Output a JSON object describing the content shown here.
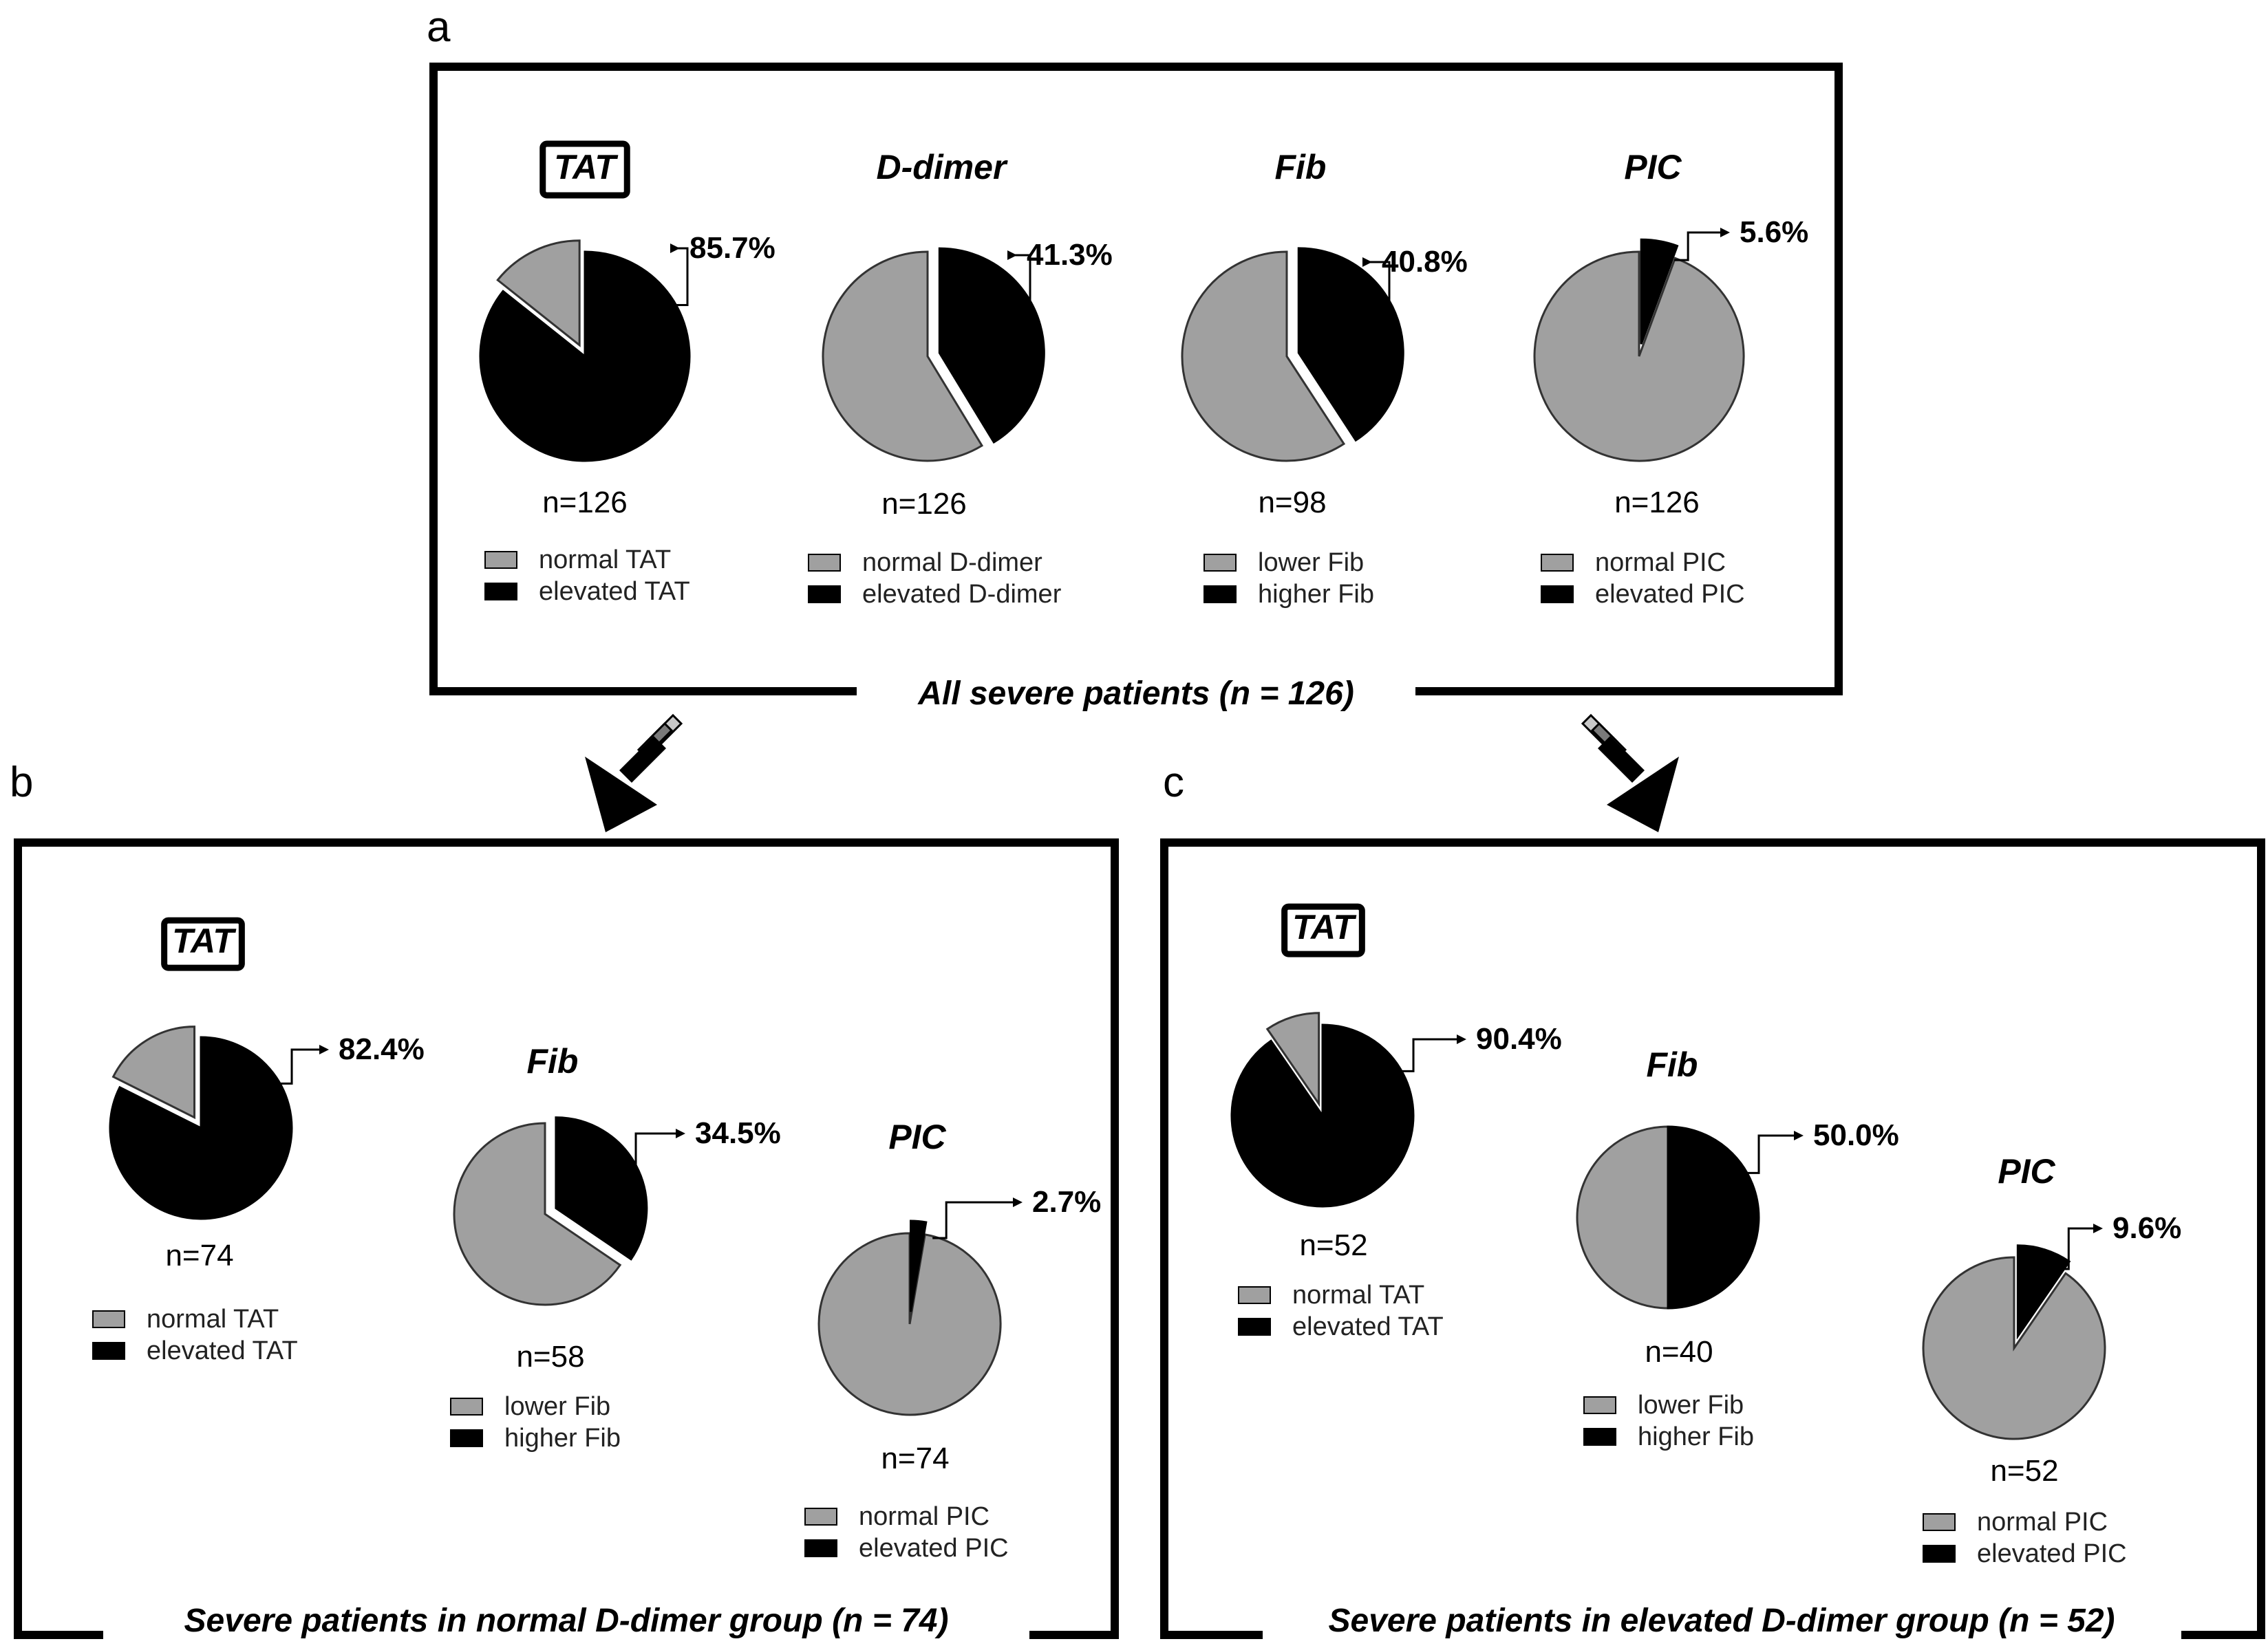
{
  "colors": {
    "normal": "#a0a0a0",
    "elevated": "#000000"
  },
  "chart_data": [
    {
      "panel": "a",
      "type": "pie",
      "caption": "All severe patients (n = 126)",
      "charts": [
        {
          "title": "TAT",
          "boxed": true,
          "n_label": "n=126",
          "highlight_pct": 85.7,
          "pct_label": "85.7%",
          "legend": [
            "normal TAT",
            "elevated TAT"
          ],
          "slices": [
            {
              "label": "normal TAT",
              "value": 14.3
            },
            {
              "label": "elevated TAT",
              "value": 85.7
            }
          ]
        },
        {
          "title": "D-dimer",
          "boxed": false,
          "n_label": "n=126",
          "highlight_pct": 41.3,
          "pct_label": "41.3%",
          "legend": [
            "normal D-dimer",
            "elevated D-dimer"
          ],
          "slices": [
            {
              "label": "normal D-dimer",
              "value": 58.7
            },
            {
              "label": "elevated D-dimer",
              "value": 41.3
            }
          ]
        },
        {
          "title": "Fib",
          "boxed": false,
          "n_label": "n=98",
          "highlight_pct": 40.8,
          "pct_label": "40.8%",
          "legend": [
            "lower Fib",
            "higher Fib"
          ],
          "slices": [
            {
              "label": "lower Fib",
              "value": 59.2
            },
            {
              "label": "higher Fib",
              "value": 40.8
            }
          ]
        },
        {
          "title": "PIC",
          "boxed": false,
          "n_label": "n=126",
          "highlight_pct": 5.6,
          "pct_label": "5.6%",
          "legend": [
            "normal PIC",
            "elevated PIC"
          ],
          "slices": [
            {
              "label": "normal PIC",
              "value": 94.4
            },
            {
              "label": "elevated PIC",
              "value": 5.6
            }
          ]
        }
      ]
    },
    {
      "panel": "b",
      "type": "pie",
      "caption": "Severe patients in normal D-dimer group (n = 74)",
      "charts": [
        {
          "title": "TAT",
          "boxed": true,
          "n_label": "n=74",
          "highlight_pct": 82.4,
          "pct_label": "82.4%",
          "legend": [
            "normal TAT",
            "elevated TAT"
          ],
          "slices": [
            {
              "label": "normal TAT",
              "value": 17.6
            },
            {
              "label": "elevated TAT",
              "value": 82.4
            }
          ]
        },
        {
          "title": "Fib",
          "boxed": false,
          "n_label": "n=58",
          "highlight_pct": 34.5,
          "pct_label": "34.5%",
          "legend": [
            "lower Fib",
            "higher Fib"
          ],
          "slices": [
            {
              "label": "lower Fib",
              "value": 65.5
            },
            {
              "label": "higher Fib",
              "value": 34.5
            }
          ]
        },
        {
          "title": "PIC",
          "boxed": false,
          "n_label": "n=74",
          "highlight_pct": 2.7,
          "pct_label": "2.7%",
          "legend": [
            "normal PIC",
            "elevated PIC"
          ],
          "slices": [
            {
              "label": "normal PIC",
              "value": 97.3
            },
            {
              "label": "elevated PIC",
              "value": 2.7
            }
          ]
        }
      ]
    },
    {
      "panel": "c",
      "type": "pie",
      "caption": "Severe patients in elevated D-dimer group (n = 52)",
      "charts": [
        {
          "title": "TAT",
          "boxed": true,
          "n_label": "n=52",
          "highlight_pct": 90.4,
          "pct_label": "90.4%",
          "legend": [
            "normal TAT",
            "elevated TAT"
          ],
          "slices": [
            {
              "label": "normal TAT",
              "value": 9.6
            },
            {
              "label": "elevated TAT",
              "value": 90.4
            }
          ]
        },
        {
          "title": "Fib",
          "boxed": false,
          "n_label": "n=40",
          "highlight_pct": 50.0,
          "pct_label": "50.0%",
          "legend": [
            "lower Fib",
            "higher Fib"
          ],
          "slices": [
            {
              "label": "lower Fib",
              "value": 50.0
            },
            {
              "label": "higher Fib",
              "value": 50.0
            }
          ]
        },
        {
          "title": "PIC",
          "boxed": false,
          "n_label": "n=52",
          "highlight_pct": 9.6,
          "pct_label": "9.6%",
          "legend": [
            "normal PIC",
            "elevated PIC"
          ],
          "slices": [
            {
              "label": "normal PIC",
              "value": 90.4
            },
            {
              "label": "elevated PIC",
              "value": 9.6
            }
          ]
        }
      ]
    }
  ]
}
